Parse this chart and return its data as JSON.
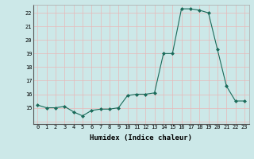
{
  "x": [
    0,
    1,
    2,
    3,
    4,
    5,
    6,
    7,
    8,
    9,
    10,
    11,
    12,
    13,
    14,
    15,
    16,
    17,
    18,
    19,
    20,
    21,
    22,
    23
  ],
  "y": [
    15.2,
    15.0,
    15.0,
    15.1,
    14.7,
    14.4,
    14.8,
    14.9,
    14.9,
    15.0,
    15.9,
    16.0,
    16.0,
    16.1,
    19.0,
    19.0,
    22.3,
    22.3,
    22.2,
    22.0,
    19.3,
    16.6,
    15.5,
    15.5
  ],
  "line_color": "#1a6b5a",
  "marker": "D",
  "marker_size": 2,
  "bg_color": "#cce8e8",
  "grid_color_major": "#e8b8b8",
  "grid_color_minor": "#e8b8b8",
  "xlabel": "Humidex (Indice chaleur)",
  "ylim": [
    13.8,
    22.6
  ],
  "xlim": [
    -0.5,
    23.5
  ],
  "yticks": [
    14,
    15,
    16,
    17,
    18,
    19,
    20,
    21,
    22
  ],
  "ytick_labels": [
    "",
    "15",
    "16",
    "17",
    "18",
    "19",
    "20",
    "21",
    "22"
  ],
  "xticks": [
    0,
    1,
    2,
    3,
    4,
    5,
    6,
    7,
    8,
    9,
    10,
    11,
    12,
    13,
    14,
    15,
    16,
    17,
    18,
    19,
    20,
    21,
    22,
    23
  ]
}
